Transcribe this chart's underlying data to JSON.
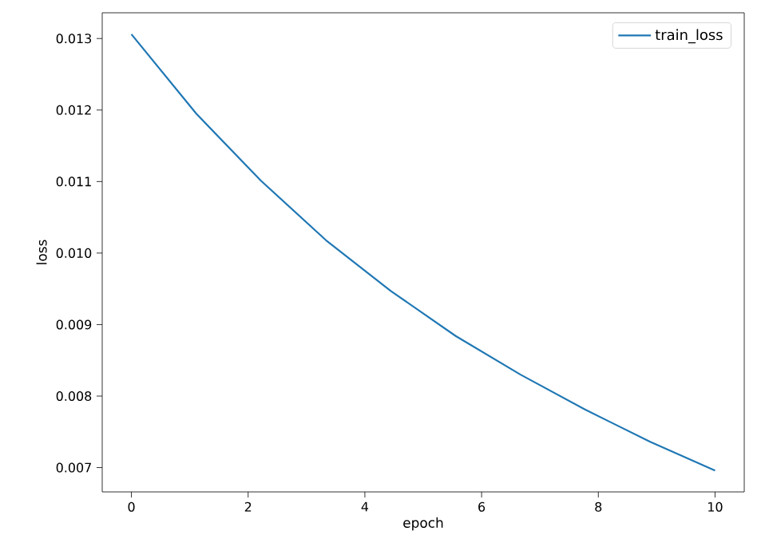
{
  "chart_data": {
    "type": "line",
    "xlabel": "epoch",
    "ylabel": "loss",
    "x": [
      0,
      1.111,
      2.222,
      3.333,
      4.444,
      5.556,
      6.667,
      7.778,
      8.889,
      10
    ],
    "series": [
      {
        "name": "train_loss",
        "color": "#1f77b4",
        "values": [
          0.01306,
          0.01195,
          0.01101,
          0.01018,
          0.00947,
          0.00884,
          0.0083,
          0.00781,
          0.00736,
          0.00696
        ]
      }
    ],
    "xlim": [
      -0.5,
      10.5
    ],
    "ylim": [
      0.00666,
      0.01336
    ],
    "xticks": [
      0,
      2,
      4,
      6,
      8,
      10
    ],
    "yticks": [
      {
        "value": 0.007,
        "label": "0.007"
      },
      {
        "value": 0.008,
        "label": "0.008"
      },
      {
        "value": 0.009,
        "label": "0.009"
      },
      {
        "value": 0.01,
        "label": "0.010"
      },
      {
        "value": 0.011,
        "label": "0.011"
      },
      {
        "value": 0.012,
        "label": "0.012"
      },
      {
        "value": 0.013,
        "label": "0.013"
      }
    ],
    "legend": "top right",
    "grid": false,
    "marker": "none",
    "line_style": "solid"
  }
}
